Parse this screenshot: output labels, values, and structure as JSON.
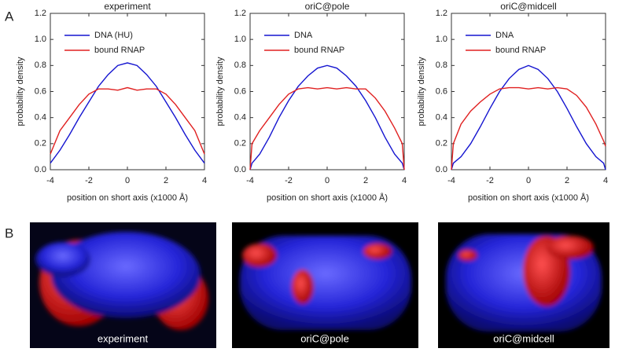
{
  "panels": [
    "A",
    "B"
  ],
  "chart_data": [
    {
      "type": "line",
      "title": "experiment",
      "xlabel": "position on short axis (x1000 Å)",
      "ylabel": "probability density",
      "x": [
        -4,
        -3.5,
        -3,
        -2.5,
        -2,
        -1.5,
        -1,
        -0.5,
        0,
        0.5,
        1,
        1.5,
        2,
        2.5,
        3,
        3.5,
        4
      ],
      "series": [
        {
          "name": "DNA (HU)",
          "color": "#1515d0",
          "values": [
            0.05,
            0.15,
            0.27,
            0.4,
            0.52,
            0.64,
            0.73,
            0.8,
            0.82,
            0.8,
            0.73,
            0.64,
            0.52,
            0.4,
            0.27,
            0.15,
            0.05
          ]
        },
        {
          "name": "bound RNAP",
          "color": "#e02020",
          "values": [
            0.12,
            0.3,
            0.4,
            0.5,
            0.58,
            0.62,
            0.62,
            0.61,
            0.63,
            0.61,
            0.62,
            0.62,
            0.58,
            0.5,
            0.4,
            0.3,
            0.12
          ]
        }
      ],
      "xlim": [
        -4,
        4
      ],
      "xticks": [
        -4,
        -2,
        0,
        2,
        4
      ],
      "ylim": [
        0,
        1.2
      ],
      "yticks": [
        {
          "value": 0,
          "label": "0.0"
        },
        {
          "value": 0.2,
          "label": "0.2"
        },
        {
          "value": 0.4,
          "label": "0.4"
        },
        {
          "value": 0.6,
          "label": "0.6"
        },
        {
          "value": 0.8,
          "label": "0.8"
        },
        {
          "value": 1,
          "label": "1.0"
        },
        {
          "value": 1.2,
          "label": "1.2"
        }
      ],
      "legend": "upper left"
    },
    {
      "type": "line",
      "title": "oriC@pole",
      "xlabel": "position on short axis (x1000 Å)",
      "ylabel": "probability density",
      "x": [
        -4,
        -3.9,
        -3.5,
        -3,
        -2.5,
        -2,
        -1.5,
        -1,
        -0.5,
        0,
        0.5,
        1,
        1.5,
        2,
        2.5,
        3,
        3.5,
        3.9,
        4
      ],
      "series": [
        {
          "name": "DNA",
          "color": "#1515d0",
          "values": [
            0,
            0.05,
            0.12,
            0.25,
            0.4,
            0.53,
            0.64,
            0.72,
            0.78,
            0.8,
            0.78,
            0.72,
            0.64,
            0.53,
            0.4,
            0.25,
            0.12,
            0.05,
            0
          ]
        },
        {
          "name": "bound RNAP",
          "color": "#e02020",
          "values": [
            0,
            0.2,
            0.3,
            0.4,
            0.5,
            0.58,
            0.62,
            0.63,
            0.62,
            0.63,
            0.62,
            0.63,
            0.62,
            0.62,
            0.55,
            0.45,
            0.32,
            0.2,
            0
          ]
        }
      ],
      "xlim": [
        -4,
        4
      ],
      "xticks": [
        -4,
        -2,
        0,
        2,
        4
      ],
      "ylim": [
        0,
        1.2
      ],
      "yticks": [
        {
          "value": 0,
          "label": "0.0"
        },
        {
          "value": 0.2,
          "label": "0.2"
        },
        {
          "value": 0.4,
          "label": "0.4"
        },
        {
          "value": 0.6,
          "label": "0.6"
        },
        {
          "value": 0.8,
          "label": "0.8"
        },
        {
          "value": 1,
          "label": "1.0"
        },
        {
          "value": 1.2,
          "label": "1.2"
        }
      ],
      "legend": "upper left"
    },
    {
      "type": "line",
      "title": "oriC@midcell",
      "xlabel": "position on short axis (x1000 Å)",
      "ylabel": "probability density",
      "x": [
        -4,
        -3.9,
        -3.5,
        -3,
        -2.5,
        -2,
        -1.5,
        -1,
        -0.5,
        0,
        0.5,
        1,
        1.5,
        2,
        2.5,
        3,
        3.5,
        3.9,
        4
      ],
      "series": [
        {
          "name": "DNA",
          "color": "#1515d0",
          "values": [
            0,
            0.05,
            0.1,
            0.2,
            0.33,
            0.47,
            0.6,
            0.7,
            0.77,
            0.8,
            0.77,
            0.7,
            0.6,
            0.47,
            0.33,
            0.2,
            0.1,
            0.05,
            0
          ]
        },
        {
          "name": "bound RNAP",
          "color": "#e02020",
          "values": [
            0,
            0.2,
            0.35,
            0.45,
            0.52,
            0.58,
            0.62,
            0.63,
            0.63,
            0.62,
            0.63,
            0.62,
            0.63,
            0.62,
            0.57,
            0.48,
            0.35,
            0.22,
            0.18
          ]
        }
      ],
      "xlim": [
        -4,
        4
      ],
      "xticks": [
        -4,
        -2,
        0,
        2,
        4
      ],
      "ylim": [
        0,
        1.2
      ],
      "yticks": [
        {
          "value": 0,
          "label": "0.0"
        },
        {
          "value": 0.2,
          "label": "0.2"
        },
        {
          "value": 0.4,
          "label": "0.4"
        },
        {
          "value": 0.6,
          "label": "0.6"
        },
        {
          "value": 0.8,
          "label": "0.8"
        },
        {
          "value": 1,
          "label": "1.0"
        },
        {
          "value": 1.2,
          "label": "1.2"
        }
      ],
      "legend": "upper left"
    }
  ],
  "images": [
    {
      "caption": "experiment"
    },
    {
      "caption": "oriC@pole"
    },
    {
      "caption": "oriC@midcell"
    }
  ]
}
